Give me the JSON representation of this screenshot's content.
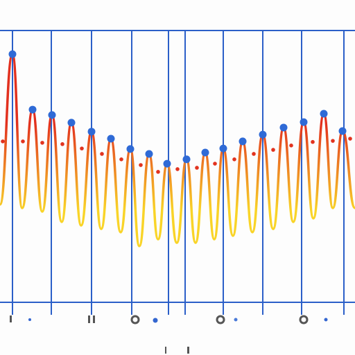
{
  "chart_data": {
    "type": "line",
    "xlim": [
      0,
      512
    ],
    "ylim": [
      0,
      100
    ],
    "xticks": [
      18,
      74,
      132,
      190,
      243,
      267,
      322,
      379,
      435,
      496
    ],
    "yticks": [
      0,
      100
    ],
    "grid": true,
    "grid_color": "#2b5fc8",
    "series": [
      {
        "gradient": [
          "#e2301e",
          "#f9d428"
        ],
        "x": [
          0,
          18,
          32,
          47,
          61,
          75,
          89,
          103,
          117,
          132,
          146,
          160,
          174,
          188,
          201,
          215,
          228,
          241,
          255,
          269,
          282,
          296,
          309,
          322,
          336,
          350,
          364,
          379,
          394,
          409,
          423,
          438,
          452,
          467,
          480,
          494,
          512
        ],
        "values": [
          36.0,
          91.3,
          34.7,
          70.9,
          33.4,
          68.9,
          29.6,
          66.1,
          28.3,
          62.8,
          27.0,
          60.2,
          25.8,
          56.4,
          20.7,
          54.6,
          23.2,
          51.0,
          21.9,
          52.6,
          21.9,
          55.1,
          23.2,
          56.6,
          24.5,
          59.2,
          25.8,
          61.7,
          27.0,
          64.3,
          29.6,
          66.3,
          30.9,
          69.4,
          34.7,
          63.0,
          34.7
        ]
      },
      {
        "color": "#2f6ad6",
        "marker": "dot",
        "x": [
          18,
          47,
          75,
          103,
          132,
          160,
          188,
          215,
          241,
          269,
          296,
          322,
          350,
          379,
          409,
          438,
          467,
          494
        ],
        "values": [
          91.3,
          70.9,
          68.9,
          66.1,
          62.8,
          60.2,
          56.4,
          54.6,
          51.0,
          52.6,
          55.1,
          56.6,
          59.2,
          61.7,
          64.3,
          66.3,
          69.4,
          63.0
        ]
      },
      {
        "color": "#e2331f",
        "marker": "dot",
        "x": [
          4,
          33,
          61,
          90,
          118,
          147,
          175,
          203,
          228,
          256,
          284,
          310,
          338,
          366,
          394,
          420,
          451,
          480,
          505
        ],
        "values": [
          59.2,
          59.2,
          58.7,
          58.2,
          56.6,
          54.6,
          52.6,
          50.5,
          48.0,
          49.0,
          49.5,
          51.0,
          52.6,
          54.6,
          56.1,
          57.7,
          59.0,
          59.4,
          60.2
        ]
      }
    ]
  }
}
